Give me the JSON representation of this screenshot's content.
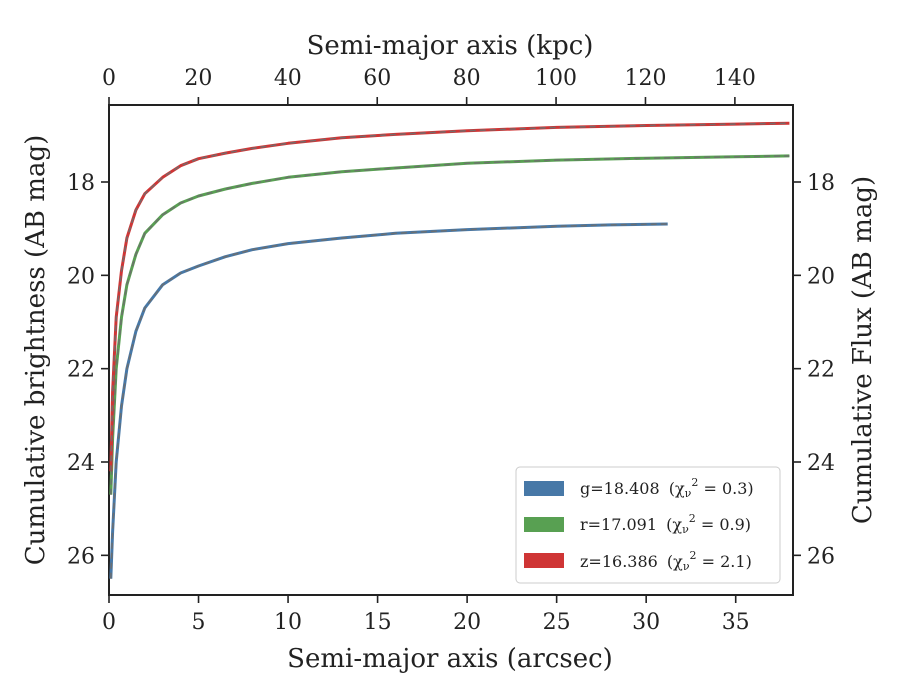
{
  "chart_data": {
    "type": "line",
    "xlabel_bottom": "Semi-major axis (arcsec)",
    "xlabel_top": "Semi-major axis (kpc)",
    "ylabel_left": "Cumulative brightness (AB mag)",
    "ylabel_right": "Cumulative Flux (AB mag)",
    "xlim_arcsec": [
      0,
      38.2
    ],
    "xlim_kpc": [
      0,
      153
    ],
    "ylim": [
      26.85,
      16.35
    ],
    "y_inverted": true,
    "x_ticks_arcsec": [
      "0",
      "5",
      "10",
      "15",
      "20",
      "25",
      "30",
      "35"
    ],
    "x_ticks_kpc": [
      "0",
      "20",
      "40",
      "60",
      "80",
      "100",
      "120",
      "140"
    ],
    "y_ticks": [
      "18",
      "20",
      "22",
      "24",
      "26"
    ],
    "grid": false,
    "legend_position": "lower-right",
    "model_line_style": "dashed gray",
    "series": [
      {
        "name": "g=18.408",
        "chi_label": "(χ",
        "chi_sub": "ν",
        "chi_sup": "2",
        "chi_value": " = 0.3)",
        "color": "#4778a7",
        "points": [
          [
            0.1,
            26.5
          ],
          [
            0.2,
            25.5
          ],
          [
            0.4,
            24.0
          ],
          [
            0.7,
            22.8
          ],
          [
            1.0,
            22.0
          ],
          [
            1.5,
            21.2
          ],
          [
            2.0,
            20.7
          ],
          [
            3.0,
            20.2
          ],
          [
            4.0,
            19.95
          ],
          [
            5.0,
            19.8
          ],
          [
            6.5,
            19.6
          ],
          [
            8.0,
            19.45
          ],
          [
            10.0,
            19.32
          ],
          [
            13.0,
            19.2
          ],
          [
            16.0,
            19.1
          ],
          [
            20.0,
            19.02
          ],
          [
            25.0,
            18.95
          ],
          [
            28.0,
            18.92
          ],
          [
            31.2,
            18.9
          ]
        ]
      },
      {
        "name": "r=17.091",
        "chi_label": "(χ",
        "chi_sub": "ν",
        "chi_sup": "2",
        "chi_value": " = 0.9)",
        "color": "#58a052",
        "points": [
          [
            0.1,
            24.7
          ],
          [
            0.2,
            23.5
          ],
          [
            0.4,
            22.0
          ],
          [
            0.7,
            20.9
          ],
          [
            1.0,
            20.2
          ],
          [
            1.5,
            19.55
          ],
          [
            2.0,
            19.1
          ],
          [
            3.0,
            18.7
          ],
          [
            4.0,
            18.45
          ],
          [
            5.0,
            18.3
          ],
          [
            6.5,
            18.15
          ],
          [
            8.0,
            18.03
          ],
          [
            10.0,
            17.9
          ],
          [
            13.0,
            17.78
          ],
          [
            16.0,
            17.7
          ],
          [
            20.0,
            17.6
          ],
          [
            25.0,
            17.53
          ],
          [
            30.0,
            17.49
          ],
          [
            35.0,
            17.46
          ],
          [
            38.0,
            17.44
          ]
        ]
      },
      {
        "name": "z=16.386",
        "chi_label": "(χ",
        "chi_sub": "ν",
        "chi_sup": "2",
        "chi_value": " = 2.1)",
        "color": "#cf3535",
        "points": [
          [
            0.1,
            24.2
          ],
          [
            0.2,
            22.5
          ],
          [
            0.4,
            20.9
          ],
          [
            0.7,
            19.9
          ],
          [
            1.0,
            19.2
          ],
          [
            1.5,
            18.6
          ],
          [
            2.0,
            18.25
          ],
          [
            3.0,
            17.9
          ],
          [
            4.0,
            17.65
          ],
          [
            5.0,
            17.5
          ],
          [
            6.5,
            17.38
          ],
          [
            8.0,
            17.28
          ],
          [
            10.0,
            17.17
          ],
          [
            13.0,
            17.05
          ],
          [
            16.0,
            16.98
          ],
          [
            20.0,
            16.9
          ],
          [
            25.0,
            16.83
          ],
          [
            30.0,
            16.79
          ],
          [
            35.0,
            16.76
          ],
          [
            38.0,
            16.74
          ]
        ]
      }
    ]
  }
}
